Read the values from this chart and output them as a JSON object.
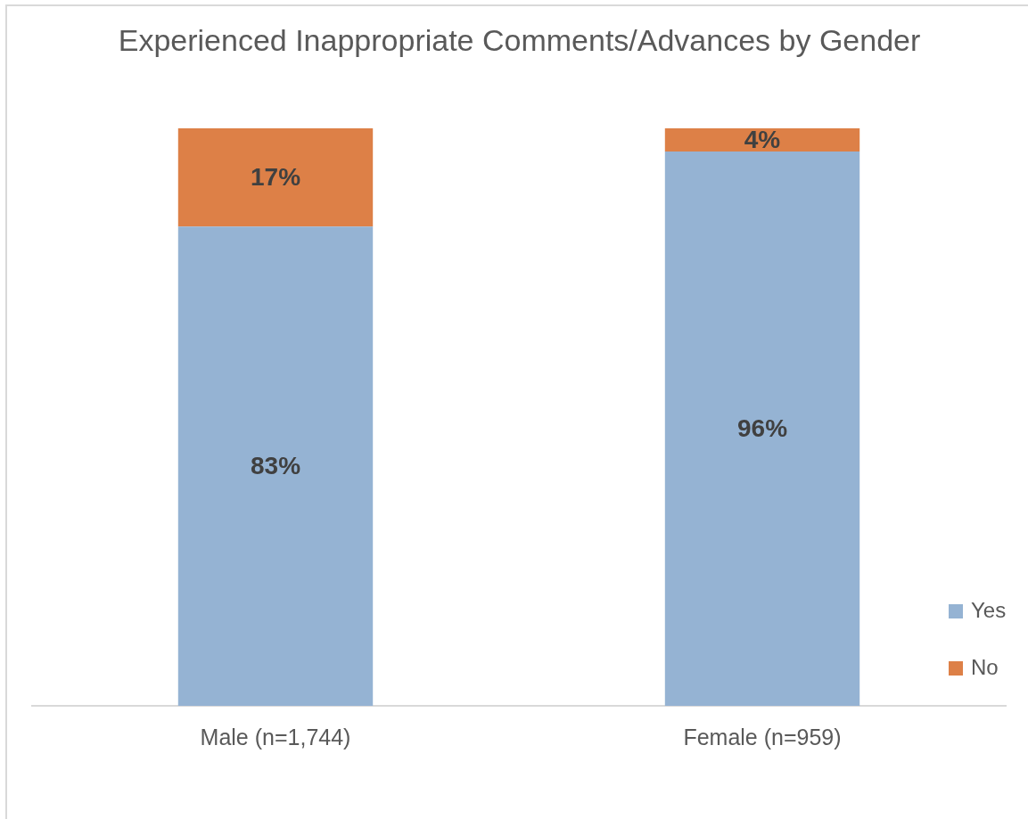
{
  "chart_data": {
    "type": "bar",
    "title": "Experienced Inappropriate Comments/Advances by Gender",
    "categories": [
      "Male (n=1,744)",
      "Female (n=959)"
    ],
    "series": [
      {
        "name": "Yes",
        "color": "#95b3d3",
        "values": [
          83,
          96
        ],
        "value_labels": [
          "83%",
          "96%"
        ]
      },
      {
        "name": "No",
        "color": "#dd8047",
        "values": [
          17,
          4
        ],
        "value_labels": [
          "17%",
          "4%"
        ]
      }
    ],
    "stacked": true,
    "ylim": [
      0,
      100
    ],
    "tick_labels": "x",
    "legend": "right"
  }
}
